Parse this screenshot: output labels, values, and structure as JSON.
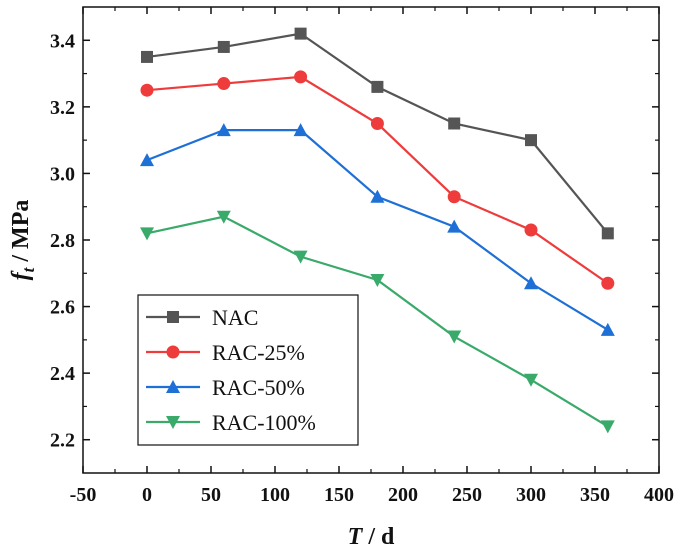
{
  "chart_data": {
    "type": "line",
    "x": [
      0,
      60,
      120,
      180,
      240,
      300,
      360
    ],
    "xlim": [
      -50,
      400
    ],
    "ylim": [
      2.1,
      3.5
    ],
    "xticks": [
      -50,
      0,
      50,
      100,
      150,
      200,
      250,
      300,
      350,
      400
    ],
    "yticks": [
      2.2,
      2.4,
      2.6,
      2.8,
      3.0,
      3.2,
      3.4
    ],
    "xtick_labels": [
      "-50",
      "0",
      "50",
      "100",
      "150",
      "200",
      "250",
      "300",
      "350",
      "400"
    ],
    "ytick_labels": [
      "2.2",
      "2.4",
      "2.6",
      "2.8",
      "3.0",
      "3.2",
      "3.4"
    ],
    "xlabel": {
      "var": "T",
      "unit": " / d"
    },
    "ylabel": {
      "var": "f",
      "sub": "t",
      "unit": " / MPa"
    },
    "legend_position": "bottom-left",
    "grid": false,
    "series": [
      {
        "name": "NAC",
        "color": "#555555",
        "marker": "square",
        "values": [
          3.35,
          3.38,
          3.42,
          3.26,
          3.15,
          3.1,
          2.82
        ]
      },
      {
        "name": "RAC-25%",
        "color": "#ee3b3b",
        "marker": "circle",
        "values": [
          3.25,
          3.27,
          3.29,
          3.15,
          2.93,
          2.83,
          2.67
        ]
      },
      {
        "name": "RAC-50%",
        "color": "#1e6fd6",
        "marker": "triangle-up",
        "values": [
          3.04,
          3.13,
          3.13,
          2.93,
          2.84,
          2.67,
          2.53
        ]
      },
      {
        "name": "RAC-100%",
        "color": "#3aaa6a",
        "marker": "triangle-down",
        "values": [
          2.82,
          2.87,
          2.75,
          2.68,
          2.51,
          2.38,
          2.24
        ]
      }
    ]
  }
}
